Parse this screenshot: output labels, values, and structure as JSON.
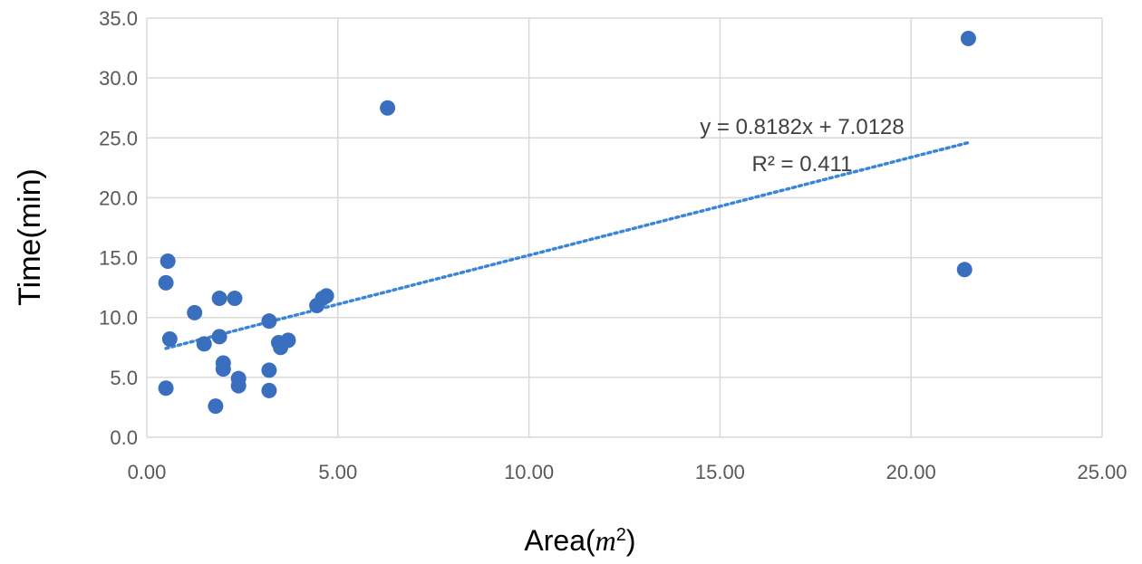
{
  "chart_data": {
    "type": "scatter",
    "title": "",
    "xlabel_prefix": "Area(",
    "xlabel_var": "m",
    "xlabel_sup": "2",
    "xlabel_suffix": ")",
    "ylabel": "Time(min)",
    "xlim": [
      0,
      25
    ],
    "ylim": [
      0,
      35
    ],
    "x_ticks": [
      0,
      5,
      10,
      15,
      20,
      25
    ],
    "x_tick_labels": [
      "0.00",
      "5.00",
      "10.00",
      "15.00",
      "20.00",
      "25.00"
    ],
    "y_ticks": [
      0,
      5,
      10,
      15,
      20,
      25,
      30,
      35
    ],
    "y_tick_labels": [
      "0.0",
      "5.0",
      "10.0",
      "15.0",
      "20.0",
      "25.0",
      "30.0",
      "35.0"
    ],
    "grid": true,
    "legend": false,
    "series": [
      {
        "color": "#3a6fbf",
        "points": [
          [
            21.5,
            33.3
          ],
          [
            6.3,
            27.5
          ],
          [
            21.4,
            14.0
          ],
          [
            0.55,
            14.7
          ],
          [
            0.5,
            12.9
          ],
          [
            0.6,
            8.2
          ],
          [
            0.5,
            4.1
          ],
          [
            1.25,
            10.4
          ],
          [
            1.5,
            7.8
          ],
          [
            1.9,
            11.6
          ],
          [
            2.3,
            11.6
          ],
          [
            1.9,
            8.4
          ],
          [
            2.0,
            6.2
          ],
          [
            2.0,
            5.7
          ],
          [
            1.8,
            2.6
          ],
          [
            2.4,
            4.9
          ],
          [
            2.4,
            4.3
          ],
          [
            3.2,
            9.7
          ],
          [
            3.2,
            5.6
          ],
          [
            3.2,
            3.9
          ],
          [
            3.45,
            7.9
          ],
          [
            3.5,
            7.5
          ],
          [
            3.7,
            8.1
          ],
          [
            4.45,
            11.0
          ],
          [
            4.6,
            11.6
          ],
          [
            4.7,
            11.8
          ]
        ]
      }
    ],
    "trendline": {
      "type": "linear",
      "slope": 0.8182,
      "intercept": 7.0128,
      "x_range": [
        0.5,
        21.5
      ],
      "color": "#3a86d6",
      "equation_label": "y = 0.8182x + 7.0128",
      "r2_label": "R² = 0.411"
    }
  }
}
